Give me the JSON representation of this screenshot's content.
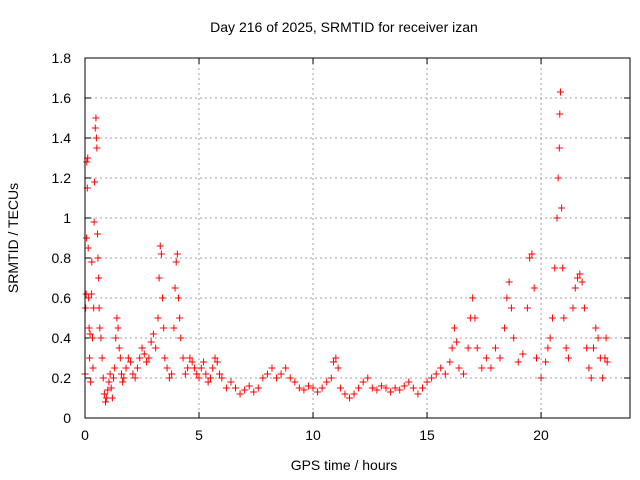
{
  "chart_data": {
    "type": "scatter",
    "title": "Day 216 of 2025, SRMTID for receiver izan",
    "xlabel": "GPS time / hours",
    "ylabel": "SRMTID / TECUs",
    "xlim": [
      0,
      23.9
    ],
    "ylim": [
      0,
      1.8
    ],
    "xticks": [
      0,
      5,
      10,
      15,
      20
    ],
    "yticks": [
      0,
      0.2,
      0.4,
      0.6,
      0.8,
      1,
      1.2,
      1.4,
      1.6,
      1.8
    ],
    "xtick_labels": [
      "0",
      "5",
      "10",
      "15",
      "20"
    ],
    "ytick_labels": [
      "0",
      "0.2",
      "0.4",
      "0.6",
      "0.8",
      "1",
      "1.2",
      "1.4",
      "1.6",
      "1.8"
    ],
    "grid": true,
    "marker": "+",
    "color": "#ff0000",
    "series": [
      {
        "name": "SRMTID",
        "points": [
          [
            0.0,
            0.22
          ],
          [
            0.03,
            0.55
          ],
          [
            0.05,
            0.62
          ],
          [
            0.07,
            0.9
          ],
          [
            0.08,
            1.28
          ],
          [
            0.1,
            1.15
          ],
          [
            0.12,
            1.3
          ],
          [
            0.14,
            0.85
          ],
          [
            0.16,
            0.6
          ],
          [
            0.18,
            0.45
          ],
          [
            0.2,
            0.3
          ],
          [
            0.22,
            0.42
          ],
          [
            0.25,
            0.18
          ],
          [
            0.28,
            0.62
          ],
          [
            0.3,
            0.78
          ],
          [
            0.33,
            0.4
          ],
          [
            0.35,
            0.25
          ],
          [
            0.38,
            0.55
          ],
          [
            0.4,
            0.98
          ],
          [
            0.42,
            1.18
          ],
          [
            0.45,
            1.45
          ],
          [
            0.48,
            1.5
          ],
          [
            0.5,
            1.4
          ],
          [
            0.52,
            1.35
          ],
          [
            0.55,
            0.92
          ],
          [
            0.57,
            0.8
          ],
          [
            0.6,
            0.7
          ],
          [
            0.62,
            0.55
          ],
          [
            0.65,
            0.45
          ],
          [
            0.7,
            0.4
          ],
          [
            0.75,
            0.3
          ],
          [
            0.8,
            0.2
          ],
          [
            0.85,
            0.12
          ],
          [
            0.9,
            0.08
          ],
          [
            0.95,
            0.1
          ],
          [
            1.0,
            0.14
          ],
          [
            1.05,
            0.18
          ],
          [
            1.1,
            0.22
          ],
          [
            1.15,
            0.15
          ],
          [
            1.2,
            0.1
          ],
          [
            1.25,
            0.2
          ],
          [
            1.3,
            0.25
          ],
          [
            1.35,
            0.4
          ],
          [
            1.4,
            0.5
          ],
          [
            1.45,
            0.45
          ],
          [
            1.5,
            0.35
          ],
          [
            1.55,
            0.3
          ],
          [
            1.6,
            0.22
          ],
          [
            1.65,
            0.18
          ],
          [
            1.7,
            0.2
          ],
          [
            1.8,
            0.25
          ],
          [
            1.9,
            0.3
          ],
          [
            2.0,
            0.28
          ],
          [
            2.1,
            0.22
          ],
          [
            2.2,
            0.2
          ],
          [
            2.3,
            0.25
          ],
          [
            2.4,
            0.3
          ],
          [
            2.5,
            0.35
          ],
          [
            2.6,
            0.32
          ],
          [
            2.7,
            0.28
          ],
          [
            2.8,
            0.3
          ],
          [
            2.9,
            0.38
          ],
          [
            3.0,
            0.42
          ],
          [
            3.1,
            0.35
          ],
          [
            3.2,
            0.5
          ],
          [
            3.25,
            0.7
          ],
          [
            3.3,
            0.86
          ],
          [
            3.35,
            0.82
          ],
          [
            3.4,
            0.6
          ],
          [
            3.45,
            0.45
          ],
          [
            3.5,
            0.3
          ],
          [
            3.6,
            0.25
          ],
          [
            3.7,
            0.2
          ],
          [
            3.8,
            0.22
          ],
          [
            3.9,
            0.45
          ],
          [
            3.95,
            0.65
          ],
          [
            4.0,
            0.78
          ],
          [
            4.05,
            0.82
          ],
          [
            4.1,
            0.6
          ],
          [
            4.15,
            0.5
          ],
          [
            4.2,
            0.4
          ],
          [
            4.3,
            0.3
          ],
          [
            4.4,
            0.22
          ],
          [
            4.5,
            0.25
          ],
          [
            4.6,
            0.3
          ],
          [
            4.7,
            0.28
          ],
          [
            4.8,
            0.25
          ],
          [
            4.9,
            0.22
          ],
          [
            5.0,
            0.2
          ],
          [
            5.1,
            0.25
          ],
          [
            5.2,
            0.28
          ],
          [
            5.3,
            0.22
          ],
          [
            5.4,
            0.18
          ],
          [
            5.5,
            0.2
          ],
          [
            5.6,
            0.25
          ],
          [
            5.7,
            0.3
          ],
          [
            5.8,
            0.28
          ],
          [
            5.9,
            0.22
          ],
          [
            6.0,
            0.2
          ],
          [
            6.2,
            0.15
          ],
          [
            6.4,
            0.18
          ],
          [
            6.6,
            0.15
          ],
          [
            6.8,
            0.12
          ],
          [
            7.0,
            0.14
          ],
          [
            7.2,
            0.16
          ],
          [
            7.4,
            0.13
          ],
          [
            7.6,
            0.15
          ],
          [
            7.8,
            0.2
          ],
          [
            8.0,
            0.22
          ],
          [
            8.2,
            0.25
          ],
          [
            8.4,
            0.2
          ],
          [
            8.6,
            0.22
          ],
          [
            8.8,
            0.25
          ],
          [
            9.0,
            0.2
          ],
          [
            9.2,
            0.18
          ],
          [
            9.4,
            0.15
          ],
          [
            9.6,
            0.14
          ],
          [
            9.8,
            0.16
          ],
          [
            10.0,
            0.15
          ],
          [
            10.2,
            0.13
          ],
          [
            10.4,
            0.15
          ],
          [
            10.6,
            0.18
          ],
          [
            10.8,
            0.2
          ],
          [
            10.9,
            0.28
          ],
          [
            11.0,
            0.3
          ],
          [
            11.1,
            0.25
          ],
          [
            11.2,
            0.15
          ],
          [
            11.4,
            0.12
          ],
          [
            11.6,
            0.1
          ],
          [
            11.8,
            0.12
          ],
          [
            12.0,
            0.15
          ],
          [
            12.2,
            0.18
          ],
          [
            12.4,
            0.2
          ],
          [
            12.6,
            0.15
          ],
          [
            12.8,
            0.14
          ],
          [
            13.0,
            0.16
          ],
          [
            13.2,
            0.15
          ],
          [
            13.4,
            0.13
          ],
          [
            13.6,
            0.15
          ],
          [
            13.8,
            0.14
          ],
          [
            14.0,
            0.16
          ],
          [
            14.2,
            0.18
          ],
          [
            14.4,
            0.15
          ],
          [
            14.6,
            0.12
          ],
          [
            14.8,
            0.15
          ],
          [
            15.0,
            0.18
          ],
          [
            15.2,
            0.2
          ],
          [
            15.4,
            0.22
          ],
          [
            15.6,
            0.25
          ],
          [
            15.8,
            0.22
          ],
          [
            16.0,
            0.28
          ],
          [
            16.1,
            0.35
          ],
          [
            16.2,
            0.45
          ],
          [
            16.3,
            0.38
          ],
          [
            16.4,
            0.25
          ],
          [
            16.6,
            0.22
          ],
          [
            16.8,
            0.35
          ],
          [
            16.9,
            0.5
          ],
          [
            17.0,
            0.6
          ],
          [
            17.1,
            0.5
          ],
          [
            17.2,
            0.35
          ],
          [
            17.4,
            0.25
          ],
          [
            17.6,
            0.3
          ],
          [
            17.8,
            0.25
          ],
          [
            18.0,
            0.35
          ],
          [
            18.2,
            0.3
          ],
          [
            18.4,
            0.45
          ],
          [
            18.5,
            0.6
          ],
          [
            18.6,
            0.68
          ],
          [
            18.7,
            0.55
          ],
          [
            18.8,
            0.4
          ],
          [
            19.0,
            0.28
          ],
          [
            19.2,
            0.32
          ],
          [
            19.4,
            0.55
          ],
          [
            19.5,
            0.8
          ],
          [
            19.6,
            0.82
          ],
          [
            19.7,
            0.65
          ],
          [
            19.8,
            0.3
          ],
          [
            20.0,
            0.2
          ],
          [
            20.2,
            0.28
          ],
          [
            20.3,
            0.35
          ],
          [
            20.4,
            0.4
          ],
          [
            20.5,
            0.5
          ],
          [
            20.6,
            0.75
          ],
          [
            20.7,
            1.0
          ],
          [
            20.75,
            1.2
          ],
          [
            20.8,
            1.35
          ],
          [
            20.82,
            1.52
          ],
          [
            20.85,
            1.63
          ],
          [
            20.9,
            1.05
          ],
          [
            20.95,
            0.75
          ],
          [
            21.0,
            0.5
          ],
          [
            21.1,
            0.35
          ],
          [
            21.2,
            0.3
          ],
          [
            21.4,
            0.55
          ],
          [
            21.5,
            0.65
          ],
          [
            21.6,
            0.7
          ],
          [
            21.7,
            0.72
          ],
          [
            21.8,
            0.68
          ],
          [
            21.9,
            0.55
          ],
          [
            22.0,
            0.35
          ],
          [
            22.1,
            0.25
          ],
          [
            22.2,
            0.2
          ],
          [
            22.3,
            0.35
          ],
          [
            22.4,
            0.45
          ],
          [
            22.5,
            0.4
          ],
          [
            22.6,
            0.3
          ],
          [
            22.7,
            0.2
          ],
          [
            22.8,
            0.3
          ],
          [
            22.85,
            0.4
          ],
          [
            22.9,
            0.28
          ]
        ]
      }
    ]
  }
}
